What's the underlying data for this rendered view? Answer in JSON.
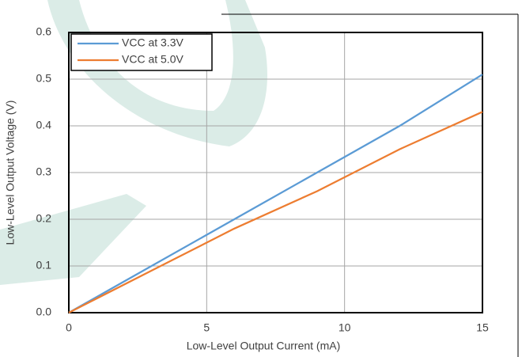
{
  "chart_data": {
    "type": "line",
    "xlabel": "Low-Level Output Current (mA)",
    "ylabel": "Low-Level Output Voltage (V)",
    "x": [
      0,
      3,
      6,
      9,
      12,
      15
    ],
    "series": [
      {
        "name": "VCC at 3.3V",
        "color": "#5b9bd5",
        "values": [
          0,
          0.1,
          0.2,
          0.3,
          0.4,
          0.51
        ]
      },
      {
        "name": "VCC at 5.0V",
        "color": "#ed7d31",
        "values": [
          0,
          0.09,
          0.18,
          0.26,
          0.35,
          0.43
        ]
      }
    ],
    "xlim": [
      0,
      15
    ],
    "xticks": [
      0,
      5,
      10,
      15
    ],
    "ylim": [
      0,
      0.6
    ],
    "yticks": [
      {
        "value": 0,
        "label": "0.0"
      },
      0.1,
      0.2,
      0.3,
      0.4,
      0.5,
      0.6
    ],
    "grid": true,
    "legend": "upper left"
  }
}
